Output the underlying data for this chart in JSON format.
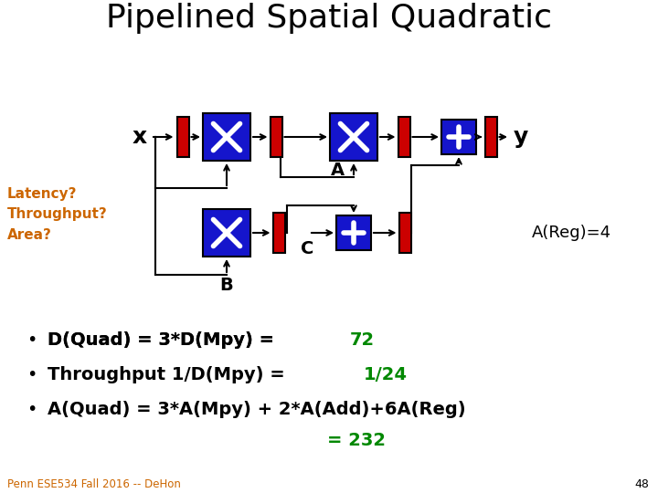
{
  "title": "Pipelined Spatial Quadratic",
  "title_fontsize": 26,
  "bg_color": "#ffffff",
  "blue_box": "#1515cc",
  "red_box": "#cc0000",
  "bullet_green": "#008800",
  "orange_text": "#cc6600",
  "latency_text": "Latency?\nThroughput?\nArea?",
  "areg_text": "A(Reg)=4",
  "bullet1_black": "D(Quad) = 3*D(Mpy) = ",
  "bullet1_green": "72",
  "bullet2_black": "Throughput 1/D(Mpy) = ",
  "bullet2_green": "1/24",
  "bullet3_black": "A(Quad) = 3*A(Mpy) + 2*A(Add)+6A(Reg)",
  "bullet3_green": "= 232",
  "footer": "Penn ESE534 Fall 2016 -- DeHon",
  "page_num": "48"
}
